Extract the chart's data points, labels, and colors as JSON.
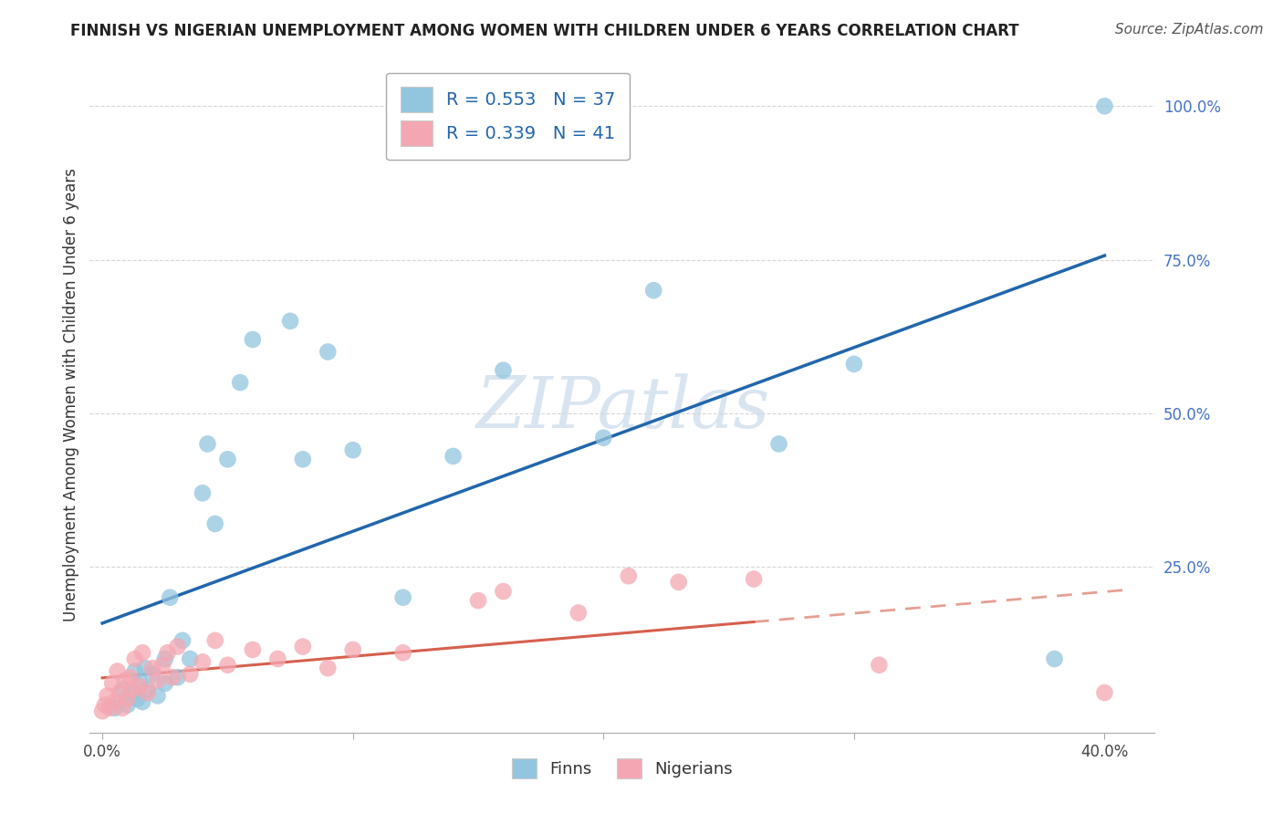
{
  "title": "FINNISH VS NIGERIAN UNEMPLOYMENT AMONG WOMEN WITH CHILDREN UNDER 6 YEARS CORRELATION CHART",
  "source": "Source: ZipAtlas.com",
  "ylabel": "Unemployment Among Women with Children Under 6 years",
  "legend_labels": [
    "Finns",
    "Nigerians"
  ],
  "finn_R": "0.553",
  "finn_N": "37",
  "nig_R": "0.339",
  "nig_N": "41",
  "finn_color": "#92c5de",
  "nig_color": "#f4a7b2",
  "trend_finn_color": "#2166ac",
  "trend_nig_color": "#d6604d",
  "watermark_color": "#c8daea",
  "background_color": "#ffffff",
  "finn_x": [
    0.005,
    0.008,
    0.01,
    0.012,
    0.013,
    0.014,
    0.015,
    0.016,
    0.017,
    0.018,
    0.02,
    0.022,
    0.025,
    0.025,
    0.027,
    0.03,
    0.032,
    0.035,
    0.04,
    0.042,
    0.045,
    0.05,
    0.055,
    0.06,
    0.075,
    0.08,
    0.09,
    0.1,
    0.12,
    0.14,
    0.16,
    0.2,
    0.22,
    0.27,
    0.3,
    0.38,
    0.4
  ],
  "finn_y": [
    0.02,
    0.05,
    0.025,
    0.045,
    0.08,
    0.035,
    0.06,
    0.03,
    0.085,
    0.05,
    0.075,
    0.04,
    0.06,
    0.1,
    0.2,
    0.07,
    0.13,
    0.1,
    0.37,
    0.45,
    0.32,
    0.425,
    0.55,
    0.62,
    0.65,
    0.425,
    0.6,
    0.44,
    0.2,
    0.43,
    0.57,
    0.46,
    0.7,
    0.45,
    0.58,
    0.1,
    1.0
  ],
  "nig_x": [
    0.0,
    0.001,
    0.002,
    0.003,
    0.004,
    0.005,
    0.006,
    0.007,
    0.008,
    0.009,
    0.01,
    0.011,
    0.012,
    0.013,
    0.015,
    0.016,
    0.018,
    0.02,
    0.022,
    0.024,
    0.026,
    0.028,
    0.03,
    0.035,
    0.04,
    0.045,
    0.05,
    0.06,
    0.07,
    0.08,
    0.09,
    0.1,
    0.12,
    0.15,
    0.16,
    0.19,
    0.21,
    0.23,
    0.26,
    0.31,
    0.4
  ],
  "nig_y": [
    0.015,
    0.025,
    0.04,
    0.02,
    0.06,
    0.03,
    0.08,
    0.045,
    0.02,
    0.065,
    0.035,
    0.07,
    0.05,
    0.1,
    0.055,
    0.11,
    0.045,
    0.085,
    0.065,
    0.09,
    0.11,
    0.07,
    0.12,
    0.075,
    0.095,
    0.13,
    0.09,
    0.115,
    0.1,
    0.12,
    0.085,
    0.115,
    0.11,
    0.195,
    0.21,
    0.175,
    0.235,
    0.225,
    0.23,
    0.09,
    0.045
  ],
  "xlim": [
    -0.005,
    0.42
  ],
  "ylim": [
    -0.02,
    1.08
  ],
  "xticks": [
    0.0,
    0.1,
    0.2,
    0.3,
    0.4
  ],
  "xtick_labels": [
    "0.0%",
    "",
    "",
    "",
    "40.0%"
  ],
  "yticks": [
    0.25,
    0.5,
    0.75,
    1.0
  ],
  "ytick_labels": [
    "25.0%",
    "50.0%",
    "75.0%",
    "100.0%"
  ]
}
